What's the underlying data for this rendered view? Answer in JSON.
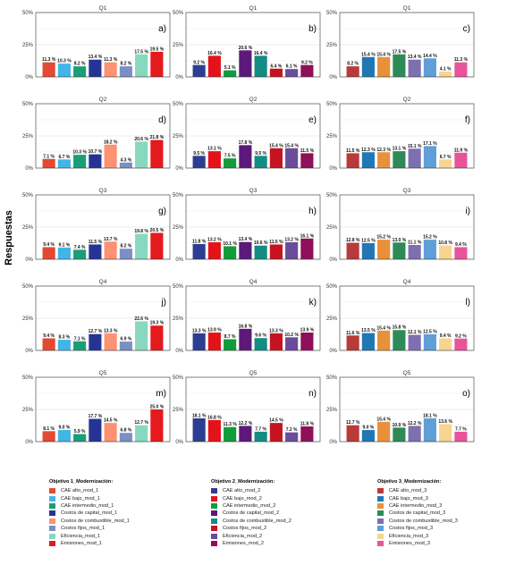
{
  "figure": {
    "y_axis_title": "Respuestas",
    "y_ticks": [
      "0%",
      "25%",
      "50%"
    ]
  },
  "chart_data": [
    {
      "type": "bar",
      "title": "Q1",
      "tag": "a)",
      "categories": [
        "CAE alto_mod_1",
        "CAE bajo_mod_1",
        "CAE intermedio_mod_1",
        "Costos de capital_mod_1",
        "Costos de combustible_mod_1",
        "Costos fijos_mod_1",
        "Eficiencia_mod_1",
        "Emisiones_mod_1"
      ],
      "values": [
        11.3,
        10.3,
        8.2,
        13.4,
        11.3,
        8.2,
        17.5,
        19.5
      ],
      "labels": [
        "11.3 %",
        "10.3 %",
        "8.2 %",
        "13.4 %",
        "11.3 %",
        "8.2 %",
        "17.5 %",
        "19.5 %"
      ],
      "ylim": [
        0,
        50
      ],
      "colors": [
        "#e34a33",
        "#41b6e6",
        "#1b9e77",
        "#253494",
        "#fc9272",
        "#7b8fc4",
        "#88d8c0",
        "#e41a1c"
      ]
    },
    {
      "type": "bar",
      "title": "Q1",
      "tag": "b)",
      "categories": [
        "CAE alto_mod_2",
        "CAE bajo_mod_2",
        "CAE intermedio_mod_2",
        "Costos de capital_mod_2",
        "Costos de combustible_mod_2",
        "Costos fijos_mod_2",
        "Eficiencia_mod_2",
        "Emisiones_mod_2"
      ],
      "values": [
        9.2,
        16.4,
        5.1,
        20.6,
        16.4,
        6.4,
        6.1,
        9.2
      ],
      "labels": [
        "9.2 %",
        "16.4 %",
        "5.1 %",
        "20.6 %",
        "16.4 %",
        "6.4 %",
        "6.1 %",
        "9.2 %"
      ],
      "ylim": [
        0,
        50
      ],
      "colors": [
        "#2c3e91",
        "#e4131a",
        "#119c3c",
        "#5b1a7a",
        "#138c84",
        "#c51420",
        "#6a4c9c",
        "#8e0f5a"
      ]
    },
    {
      "type": "bar",
      "title": "Q1",
      "tag": "c)",
      "categories": [
        "CAE alto_mod_3",
        "CAE bajo_mod_3",
        "CAE intermedio_mod_3",
        "Costos de capital_mod_3",
        "Costos de combustible_mod_3",
        "Costos fijos_mod_3",
        "Eficiencia_mod_3",
        "Emisiones_mod_3"
      ],
      "values": [
        8.2,
        15.4,
        15.4,
        17.5,
        13.4,
        14.4,
        4.1,
        11.3
      ],
      "labels": [
        "8.2 %",
        "15.4 %",
        "15.4 %",
        "17.5 %",
        "13.4 %",
        "14.4 %",
        "4.1 %",
        "11.3 %"
      ],
      "ylim": [
        0,
        50
      ],
      "colors": [
        "#b83a3a",
        "#1f78b4",
        "#e8913a",
        "#2e8b57",
        "#7e6fb0",
        "#5d9fd6",
        "#f7d58f",
        "#e7549a"
      ]
    },
    {
      "type": "bar",
      "title": "Q2",
      "tag": "d)",
      "categories": [
        "CAE alto_mod_1",
        "CAE bajo_mod_1",
        "CAE intermedio_mod_1",
        "Costos de capital_mod_1",
        "Costos de combustible_mod_1",
        "Costos fijos_mod_1",
        "Eficiencia_mod_1",
        "Emisiones_mod_1"
      ],
      "values": [
        7.1,
        6.7,
        10.3,
        10.7,
        18.2,
        4.3,
        20.6,
        21.8
      ],
      "labels": [
        "7.1 %",
        "6.7 %",
        "10.3 %",
        "10.7 %",
        "18.2 %",
        "4.3 %",
        "20.6 %",
        "21.8 %"
      ],
      "ylim": [
        0,
        50
      ],
      "colors": [
        "#e34a33",
        "#41b6e6",
        "#1b9e77",
        "#253494",
        "#fc9272",
        "#7b8fc4",
        "#88d8c0",
        "#e41a1c"
      ]
    },
    {
      "type": "bar",
      "title": "Q2",
      "tag": "e)",
      "categories": [
        "CAE alto_mod_2",
        "CAE bajo_mod_2",
        "CAE intermedio_mod_2",
        "Costos de capital_mod_2",
        "Costos de combustible_mod_2",
        "Costos fijos_mod_2",
        "Eficiencia_mod_2",
        "Emisiones_mod_2"
      ],
      "values": [
        9.5,
        13.1,
        7.5,
        17.8,
        9.5,
        15.4,
        15.4,
        11.5
      ],
      "labels": [
        "9.5 %",
        "13.1 %",
        "7.5 %",
        "17.8 %",
        "9.5 %",
        "15.4 %",
        "15.4 %",
        "11.5 %"
      ],
      "ylim": [
        0,
        50
      ],
      "colors": [
        "#2c3e91",
        "#e4131a",
        "#119c3c",
        "#5b1a7a",
        "#138c84",
        "#c51420",
        "#6a4c9c",
        "#8e0f5a"
      ]
    },
    {
      "type": "bar",
      "title": "Q2",
      "tag": "f)",
      "categories": [
        "CAE alto_mod_3",
        "CAE bajo_mod_3",
        "CAE intermedio_mod_3",
        "Costos de capital_mod_3",
        "Costos de combustible_mod_3",
        "Costos fijos_mod_3",
        "Eficiencia_mod_3",
        "Emisiones_mod_3"
      ],
      "values": [
        11.5,
        12.3,
        12.3,
        13.1,
        15.1,
        17.1,
        6.7,
        11.9
      ],
      "labels": [
        "11.5 %",
        "12.3 %",
        "12.3 %",
        "13.1 %",
        "15.1 %",
        "17.1 %",
        "6.7 %",
        "11.9 %"
      ],
      "ylim": [
        0,
        50
      ],
      "colors": [
        "#b83a3a",
        "#1f78b4",
        "#e8913a",
        "#2e8b57",
        "#7e6fb0",
        "#5d9fd6",
        "#f7d58f",
        "#e7549a"
      ]
    },
    {
      "type": "bar",
      "title": "Q3",
      "tag": "g)",
      "categories": [
        "CAE alto_mod_1",
        "CAE bajo_mod_1",
        "CAE intermedio_mod_1",
        "Costos de capital_mod_1",
        "Costos de combustible_mod_1",
        "Costos fijos_mod_1",
        "Eficiencia_mod_1",
        "Emisiones_mod_1"
      ],
      "values": [
        9.4,
        9.1,
        7.4,
        11.5,
        13.7,
        8.2,
        19.8,
        20.5
      ],
      "labels": [
        "9.4 %",
        "9.1 %",
        "7.4 %",
        "11.5 %",
        "13.7 %",
        "8.2 %",
        "19.8 %",
        "20.5 %"
      ],
      "ylim": [
        0,
        50
      ],
      "colors": [
        "#e34a33",
        "#41b6e6",
        "#1b9e77",
        "#253494",
        "#fc9272",
        "#7b8fc4",
        "#88d8c0",
        "#e41a1c"
      ]
    },
    {
      "type": "bar",
      "title": "Q3",
      "tag": "h)",
      "categories": [
        "CAE alto_mod_2",
        "CAE bajo_mod_2",
        "CAE intermedio_mod_2",
        "Costos de capital_mod_2",
        "Costos de combustible_mod_2",
        "Costos fijos_mod_2",
        "Eficiencia_mod_2",
        "Emisiones_mod_2"
      ],
      "values": [
        11.8,
        13.2,
        10.1,
        13.4,
        10.6,
        11.5,
        13.2,
        16.1
      ],
      "labels": [
        "11.8 %",
        "13.2 %",
        "10.1 %",
        "13.4 %",
        "10.6 %",
        "11.5 %",
        "13.2 %",
        "16.1 %"
      ],
      "ylim": [
        0,
        50
      ],
      "colors": [
        "#2c3e91",
        "#e4131a",
        "#119c3c",
        "#5b1a7a",
        "#138c84",
        "#c51420",
        "#6a4c9c",
        "#8e0f5a"
      ]
    },
    {
      "type": "bar",
      "title": "Q3",
      "tag": "i)",
      "categories": [
        "CAE alto_mod_3",
        "CAE bajo_mod_3",
        "CAE intermedio_mod_3",
        "Costos de capital_mod_3",
        "Costos de combustible_mod_3",
        "Costos fijos_mod_3",
        "Eficiencia_mod_3",
        "Emisiones_mod_3"
      ],
      "values": [
        12.8,
        12.5,
        15.2,
        13.0,
        11.1,
        15.2,
        10.8,
        9.4
      ],
      "labels": [
        "12.8 %",
        "12.5 %",
        "15.2 %",
        "13.0 %",
        "11.1 %",
        "15.2 %",
        "10.8 %",
        "9.4 %"
      ],
      "ylim": [
        0,
        50
      ],
      "colors": [
        "#b83a3a",
        "#1f78b4",
        "#e8913a",
        "#2e8b57",
        "#7e6fb0",
        "#5d9fd6",
        "#f7d58f",
        "#e7549a"
      ]
    },
    {
      "type": "bar",
      "title": "Q4",
      "tag": "j)",
      "categories": [
        "CAE alto_mod_1",
        "CAE bajo_mod_1",
        "CAE intermedio_mod_1",
        "Costos de capital_mod_1",
        "Costos de combustible_mod_1",
        "Costos fijos_mod_1",
        "Eficiencia_mod_1",
        "Emisiones_mod_1"
      ],
      "values": [
        9.4,
        8.3,
        7.1,
        12.7,
        13.3,
        6.9,
        22.6,
        19.3
      ],
      "labels": [
        "9.4 %",
        "8.3 %",
        "7.1 %",
        "12.7 %",
        "13.3 %",
        "6.9 %",
        "22.6 %",
        "19.3 %"
      ],
      "ylim": [
        0,
        50
      ],
      "colors": [
        "#e34a33",
        "#41b6e6",
        "#1b9e77",
        "#253494",
        "#fc9272",
        "#7b8fc4",
        "#88d8c0",
        "#e41a1c"
      ]
    },
    {
      "type": "bar",
      "title": "Q4",
      "tag": "k)",
      "categories": [
        "CAE alto_mod_2",
        "CAE bajo_mod_2",
        "CAE intermedio_mod_2",
        "Costos de capital_mod_2",
        "Costos de combustible_mod_2",
        "Costos fijos_mod_2",
        "Eficiencia_mod_2",
        "Emisiones_mod_2"
      ],
      "values": [
        13.3,
        13.9,
        8.7,
        16.8,
        9.6,
        13.3,
        10.2,
        13.9
      ],
      "labels": [
        "13.3 %",
        "13.9 %",
        "8.7 %",
        "16.8 %",
        "9.6 %",
        "13.3 %",
        "10.2 %",
        "13.9 %"
      ],
      "ylim": [
        0,
        50
      ],
      "colors": [
        "#2c3e91",
        "#e4131a",
        "#119c3c",
        "#5b1a7a",
        "#138c84",
        "#c51420",
        "#6a4c9c",
        "#8e0f5a"
      ]
    },
    {
      "type": "bar",
      "title": "Q4",
      "tag": "l)",
      "categories": [
        "CAE alto_mod_3",
        "CAE bajo_mod_3",
        "CAE intermedio_mod_3",
        "Costos de capital_mod_3",
        "Costos de combustible_mod_3",
        "Costos fijos_mod_3",
        "Eficiencia_mod_3",
        "Emisiones_mod_3"
      ],
      "values": [
        11.6,
        13.5,
        15.4,
        15.8,
        12.1,
        12.5,
        9.4,
        9.2
      ],
      "labels": [
        "11.6 %",
        "13.5 %",
        "15.4 %",
        "15.8 %",
        "12.1 %",
        "12.5 %",
        "9.4 %",
        "9.2 %"
      ],
      "ylim": [
        0,
        50
      ],
      "colors": [
        "#b83a3a",
        "#1f78b4",
        "#e8913a",
        "#2e8b57",
        "#7e6fb0",
        "#5d9fd6",
        "#f7d58f",
        "#e7549a"
      ]
    },
    {
      "type": "bar",
      "title": "Q5",
      "tag": "m)",
      "categories": [
        "CAE alto_mod_1",
        "CAE bajo_mod_1",
        "CAE intermedio_mod_1",
        "Costos de capital_mod_1",
        "Costos de combustible_mod_1",
        "Costos fijos_mod_1",
        "Eficiencia_mod_1",
        "Emisiones_mod_1"
      ],
      "values": [
        8.1,
        9.0,
        5.9,
        17.7,
        14.5,
        6.8,
        12.7,
        25.0
      ],
      "labels": [
        "8.1 %",
        "9.0 %",
        "5.9 %",
        "17.7 %",
        "14.5 %",
        "6.8 %",
        "12.7 %",
        "25.0 %"
      ],
      "ylim": [
        0,
        50
      ],
      "colors": [
        "#e34a33",
        "#41b6e6",
        "#1b9e77",
        "#253494",
        "#fc9272",
        "#7b8fc4",
        "#88d8c0",
        "#e41a1c"
      ]
    },
    {
      "type": "bar",
      "title": "Q5",
      "tag": "n)",
      "categories": [
        "CAE alto_mod_2",
        "CAE bajo_mod_2",
        "CAE intermedio_mod_2",
        "Costos de capital_mod_2",
        "Costos de combustible_mod_2",
        "Costos fijos_mod_2",
        "Eficiencia_mod_2",
        "Emisiones_mod_2"
      ],
      "values": [
        18.1,
        16.8,
        11.3,
        12.2,
        7.7,
        14.5,
        7.2,
        11.8
      ],
      "labels": [
        "18.1 %",
        "16.8 %",
        "11.3 %",
        "12.2 %",
        "7.7 %",
        "14.5 %",
        "7.2 %",
        "11.8 %"
      ],
      "ylim": [
        0,
        50
      ],
      "colors": [
        "#2c3e91",
        "#e4131a",
        "#119c3c",
        "#5b1a7a",
        "#138c84",
        "#c51420",
        "#6a4c9c",
        "#8e0f5a"
      ]
    },
    {
      "type": "bar",
      "title": "Q5",
      "tag": "o)",
      "categories": [
        "CAE alto_mod_3",
        "CAE bajo_mod_3",
        "CAE intermedio_mod_3",
        "Costos de capital_mod_3",
        "Costos de combustible_mod_3",
        "Costos fijos_mod_3",
        "Eficiencia_mod_3",
        "Emisiones_mod_3"
      ],
      "values": [
        12.7,
        9.0,
        15.4,
        10.9,
        12.2,
        18.1,
        13.6,
        7.7
      ],
      "labels": [
        "12.7 %",
        "9.0 %",
        "15.4 %",
        "10.9 %",
        "12.2 %",
        "18.1 %",
        "13.6 %",
        "7.7 %"
      ],
      "ylim": [
        0,
        50
      ],
      "colors": [
        "#b83a3a",
        "#1f78b4",
        "#e8913a",
        "#2e8b57",
        "#7e6fb0",
        "#5d9fd6",
        "#f7d58f",
        "#e7549a"
      ]
    }
  ],
  "legends": [
    {
      "title": "Objetivo 1_Modernización:",
      "items": [
        {
          "label": "CAE alto_mod_1",
          "color": "#e34a33"
        },
        {
          "label": "CAE bajo_mod_1",
          "color": "#41b6e6"
        },
        {
          "label": "CAE intermedio_mod_1",
          "color": "#1b9e77"
        },
        {
          "label": "Costos de capital_mod_1",
          "color": "#253494"
        },
        {
          "label": "Costos de combustible_mod_1",
          "color": "#fc9272"
        },
        {
          "label": "Costos fijos_mod_1",
          "color": "#7b8fc4"
        },
        {
          "label": "Eficiencia_mod_1",
          "color": "#88d8c0"
        },
        {
          "label": "Emisiones_mod_1",
          "color": "#e41a1c"
        }
      ]
    },
    {
      "title": "Objetivo 2_Modernización:",
      "items": [
        {
          "label": "CAE alto_mod_2",
          "color": "#2c3e91"
        },
        {
          "label": "CAE bajo_mod_2",
          "color": "#e4131a"
        },
        {
          "label": "CAE intermedio_mod_2",
          "color": "#119c3c"
        },
        {
          "label": "Costos de capital_mod_2",
          "color": "#5b1a7a"
        },
        {
          "label": "Costos de combustible_mod_2",
          "color": "#138c84"
        },
        {
          "label": "Costos fijos_mod_2",
          "color": "#c51420"
        },
        {
          "label": "Eficiencia_mod_2",
          "color": "#6a4c9c"
        },
        {
          "label": "Emisiones_mod_2",
          "color": "#8e0f5a"
        }
      ]
    },
    {
      "title": "Objetivo 3_Modernización:",
      "items": [
        {
          "label": "CAE alto_mod_3",
          "color": "#b83a3a"
        },
        {
          "label": "CAE bajo_mod_3",
          "color": "#1f78b4"
        },
        {
          "label": "CAE intermedio_mod_3",
          "color": "#e8913a"
        },
        {
          "label": "Costos de capital_mod_3",
          "color": "#2e8b57"
        },
        {
          "label": "Costos de combustible_mod_3",
          "color": "#7e6fb0"
        },
        {
          "label": "Costos fijos_mod_3",
          "color": "#5d9fd6"
        },
        {
          "label": "Eficiencia_mod_3",
          "color": "#f7d58f"
        },
        {
          "label": "Emisiones_mod_3",
          "color": "#e7549a"
        }
      ]
    }
  ]
}
